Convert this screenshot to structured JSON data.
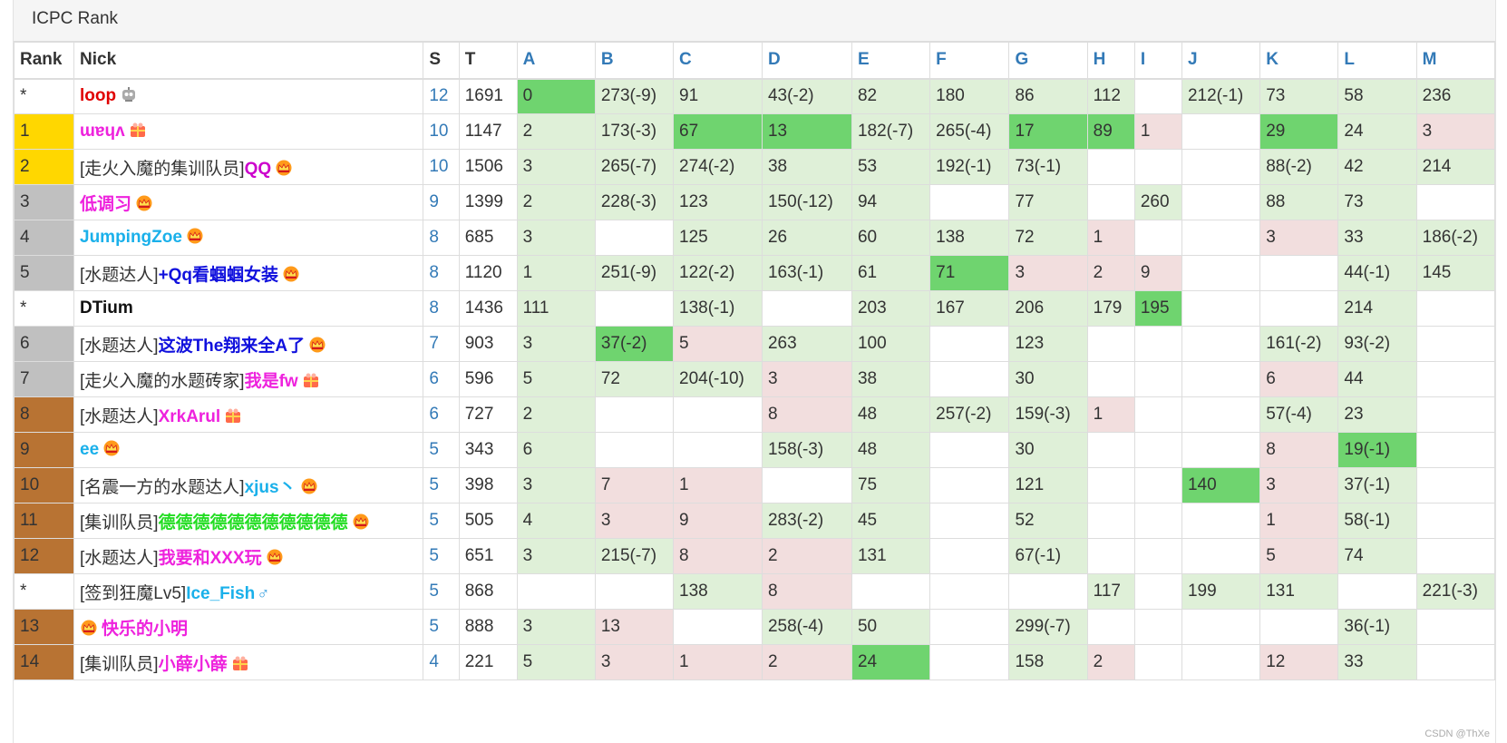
{
  "title": "ICPC Rank",
  "columns": [
    "Rank",
    "Nick",
    "S",
    "T"
  ],
  "problems": [
    "A",
    "B",
    "C",
    "D",
    "E",
    "F",
    "G",
    "H",
    "I",
    "J",
    "K",
    "L",
    "M"
  ],
  "colors": {
    "first_blood": "#6fd46f",
    "accepted": "#dff0d8",
    "wrong": "#f2dede",
    "gold": "#ffd700",
    "silver": "#c0c0c0",
    "bronze": "#b87333"
  },
  "rows": [
    {
      "rank": "*",
      "medal": "none",
      "prefix": "",
      "name": "loop",
      "color": "#e00000",
      "icon": "robot-icon",
      "s": "12",
      "t": "1691",
      "cells": [
        [
          "0",
          "fb"
        ],
        [
          "273(-9)",
          "ac"
        ],
        [
          "91",
          "ac"
        ],
        [
          "43(-2)",
          "ac"
        ],
        [
          "82",
          "ac"
        ],
        [
          "180",
          "ac"
        ],
        [
          "86",
          "ac"
        ],
        [
          "112",
          "ac"
        ],
        [
          "",
          ""
        ],
        [
          "212(-1)",
          "ac"
        ],
        [
          "73",
          "ac"
        ],
        [
          "58",
          "ac"
        ],
        [
          "236",
          "ac"
        ]
      ]
    },
    {
      "rank": "1",
      "medal": "gold",
      "prefix": "",
      "name": "ɯɐɥʌ",
      "color": "#ee22dd",
      "icon": "gift-icon",
      "s": "10",
      "t": "1147",
      "cells": [
        [
          "2",
          "ac"
        ],
        [
          "173(-3)",
          "ac"
        ],
        [
          "67",
          "fb"
        ],
        [
          "13",
          "fb"
        ],
        [
          "182(-7)",
          "ac"
        ],
        [
          "265(-4)",
          "ac"
        ],
        [
          "17",
          "fb"
        ],
        [
          "89",
          "fb"
        ],
        [
          "1",
          "wa"
        ],
        [
          "",
          ""
        ],
        [
          "29",
          "fb"
        ],
        [
          "24",
          "ac"
        ],
        [
          "3",
          "wa"
        ]
      ]
    },
    {
      "rank": "2",
      "medal": "gold",
      "prefix": "[走火入魔的集训队员]",
      "name": "QQ",
      "color": "#cc00cc",
      "icon": "crown-icon",
      "s": "10",
      "t": "1506",
      "cells": [
        [
          "3",
          "ac"
        ],
        [
          "265(-7)",
          "ac"
        ],
        [
          "274(-2)",
          "ac"
        ],
        [
          "38",
          "ac"
        ],
        [
          "53",
          "ac"
        ],
        [
          "192(-1)",
          "ac"
        ],
        [
          "73(-1)",
          "ac"
        ],
        [
          "",
          ""
        ],
        [
          "",
          ""
        ],
        [
          "",
          ""
        ],
        [
          "88(-2)",
          "ac"
        ],
        [
          "42",
          "ac"
        ],
        [
          "214",
          "ac"
        ]
      ]
    },
    {
      "rank": "3",
      "medal": "silver",
      "prefix": "",
      "name": "低调习",
      "color": "#ee22dd",
      "icon": "crown-icon",
      "s": "9",
      "t": "1399",
      "cells": [
        [
          "2",
          "ac"
        ],
        [
          "228(-3)",
          "ac"
        ],
        [
          "123",
          "ac"
        ],
        [
          "150(-12)",
          "ac"
        ],
        [
          "94",
          "ac"
        ],
        [
          "",
          ""
        ],
        [
          "77",
          "ac"
        ],
        [
          "",
          ""
        ],
        [
          "260",
          "ac"
        ],
        [
          "",
          ""
        ],
        [
          "88",
          "ac"
        ],
        [
          "73",
          "ac"
        ],
        [
          "",
          ""
        ]
      ]
    },
    {
      "rank": "4",
      "medal": "silver",
      "prefix": "",
      "name": "JumpingZoe",
      "color": "#1ab0ea",
      "icon": "crown-icon",
      "s": "8",
      "t": "685",
      "cells": [
        [
          "3",
          "ac"
        ],
        [
          "",
          ""
        ],
        [
          "125",
          "ac"
        ],
        [
          "26",
          "ac"
        ],
        [
          "60",
          "ac"
        ],
        [
          "138",
          "ac"
        ],
        [
          "72",
          "ac"
        ],
        [
          "1",
          "wa"
        ],
        [
          "",
          ""
        ],
        [
          "",
          ""
        ],
        [
          "3",
          "wa"
        ],
        [
          "33",
          "ac"
        ],
        [
          "186(-2)",
          "ac"
        ]
      ]
    },
    {
      "rank": "5",
      "medal": "silver",
      "prefix": "[水题达人]",
      "name": "+Qq看蝈蝈女装",
      "color": "#1010dd",
      "icon": "crown-icon",
      "s": "8",
      "t": "1120",
      "cells": [
        [
          "1",
          "ac"
        ],
        [
          "251(-9)",
          "ac"
        ],
        [
          "122(-2)",
          "ac"
        ],
        [
          "163(-1)",
          "ac"
        ],
        [
          "61",
          "ac"
        ],
        [
          "71",
          "fb"
        ],
        [
          "3",
          "wa"
        ],
        [
          "2",
          "wa"
        ],
        [
          "9",
          "wa"
        ],
        [
          "",
          ""
        ],
        [
          "",
          ""
        ],
        [
          "44(-1)",
          "ac"
        ],
        [
          "145",
          "ac"
        ]
      ]
    },
    {
      "rank": "*",
      "medal": "none",
      "prefix": "",
      "name": "DTium",
      "color": "#111111",
      "icon": "",
      "s": "8",
      "t": "1436",
      "cells": [
        [
          "111",
          "ac"
        ],
        [
          "",
          ""
        ],
        [
          "138(-1)",
          "ac"
        ],
        [
          "",
          ""
        ],
        [
          "203",
          "ac"
        ],
        [
          "167",
          "ac"
        ],
        [
          "206",
          "ac"
        ],
        [
          "179",
          "ac"
        ],
        [
          "195",
          "fb"
        ],
        [
          "",
          ""
        ],
        [
          "",
          ""
        ],
        [
          "214",
          "ac"
        ],
        [
          "",
          ""
        ]
      ]
    },
    {
      "rank": "6",
      "medal": "silver",
      "prefix": "[水题达人]",
      "name": "这波The翔来全A了",
      "color": "#1010dd",
      "icon": "crown-icon",
      "s": "7",
      "t": "903",
      "cells": [
        [
          "3",
          "ac"
        ],
        [
          "37(-2)",
          "fb"
        ],
        [
          "5",
          "wa"
        ],
        [
          "263",
          "ac"
        ],
        [
          "100",
          "ac"
        ],
        [
          "",
          ""
        ],
        [
          "123",
          "ac"
        ],
        [
          "",
          ""
        ],
        [
          "",
          ""
        ],
        [
          "",
          ""
        ],
        [
          "161(-2)",
          "ac"
        ],
        [
          "93(-2)",
          "ac"
        ],
        [
          "",
          ""
        ]
      ]
    },
    {
      "rank": "7",
      "medal": "silver",
      "prefix": "[走火入魔的水题砖家]",
      "name": "我是fw",
      "color": "#ee22dd",
      "icon": "gift-icon",
      "s": "6",
      "t": "596",
      "cells": [
        [
          "5",
          "ac"
        ],
        [
          "72",
          "ac"
        ],
        [
          "204(-10)",
          "ac"
        ],
        [
          "3",
          "wa"
        ],
        [
          "38",
          "ac"
        ],
        [
          "",
          ""
        ],
        [
          "30",
          "ac"
        ],
        [
          "",
          ""
        ],
        [
          "",
          ""
        ],
        [
          "",
          ""
        ],
        [
          "6",
          "wa"
        ],
        [
          "44",
          "ac"
        ],
        [
          "",
          ""
        ]
      ]
    },
    {
      "rank": "8",
      "medal": "bronze",
      "prefix": "[水题达人]",
      "name": "XrkArul",
      "color": "#ee22dd",
      "icon": "gift-icon",
      "s": "6",
      "t": "727",
      "cells": [
        [
          "2",
          "ac"
        ],
        [
          "",
          ""
        ],
        [
          "",
          ""
        ],
        [
          "8",
          "wa"
        ],
        [
          "48",
          "ac"
        ],
        [
          "257(-2)",
          "ac"
        ],
        [
          "159(-3)",
          "ac"
        ],
        [
          "1",
          "wa"
        ],
        [
          "",
          ""
        ],
        [
          "",
          ""
        ],
        [
          "57(-4)",
          "ac"
        ],
        [
          "23",
          "ac"
        ],
        [
          "",
          ""
        ]
      ]
    },
    {
      "rank": "9",
      "medal": "bronze",
      "prefix": "",
      "name": "ee",
      "color": "#1ab0ea",
      "icon": "crown-icon",
      "s": "5",
      "t": "343",
      "cells": [
        [
          "6",
          "ac"
        ],
        [
          "",
          ""
        ],
        [
          "",
          ""
        ],
        [
          "158(-3)",
          "ac"
        ],
        [
          "48",
          "ac"
        ],
        [
          "",
          ""
        ],
        [
          "30",
          "ac"
        ],
        [
          "",
          ""
        ],
        [
          "",
          ""
        ],
        [
          "",
          ""
        ],
        [
          "8",
          "wa"
        ],
        [
          "19(-1)",
          "fb"
        ],
        [
          "",
          ""
        ]
      ]
    },
    {
      "rank": "10",
      "medal": "bronze",
      "prefix": "[名震一方的水题达人]",
      "name": "xjus丶",
      "color": "#1ab0ea",
      "icon": "crown-icon",
      "s": "5",
      "t": "398",
      "cells": [
        [
          "3",
          "ac"
        ],
        [
          "7",
          "wa"
        ],
        [
          "1",
          "wa"
        ],
        [
          "",
          ""
        ],
        [
          "75",
          "ac"
        ],
        [
          "",
          ""
        ],
        [
          "121",
          "ac"
        ],
        [
          "",
          ""
        ],
        [
          "",
          ""
        ],
        [
          "140",
          "fb"
        ],
        [
          "3",
          "wa"
        ],
        [
          "37(-1)",
          "ac"
        ],
        [
          "",
          ""
        ]
      ]
    },
    {
      "rank": "11",
      "medal": "bronze",
      "prefix": "[集训队员]",
      "name": "德德德德德德德德德德德",
      "color": "#22dd22",
      "icon": "crown-icon",
      "s": "5",
      "t": "505",
      "cells": [
        [
          "4",
          "ac"
        ],
        [
          "3",
          "wa"
        ],
        [
          "9",
          "wa"
        ],
        [
          "283(-2)",
          "ac"
        ],
        [
          "45",
          "ac"
        ],
        [
          "",
          ""
        ],
        [
          "52",
          "ac"
        ],
        [
          "",
          ""
        ],
        [
          "",
          ""
        ],
        [
          "",
          ""
        ],
        [
          "1",
          "wa"
        ],
        [
          "58(-1)",
          "ac"
        ],
        [
          "",
          ""
        ]
      ]
    },
    {
      "rank": "12",
      "medal": "bronze",
      "prefix": "[水题达人]",
      "name": "我要和XXX玩",
      "color": "#ee22dd",
      "icon": "crown-icon",
      "s": "5",
      "t": "651",
      "cells": [
        [
          "3",
          "ac"
        ],
        [
          "215(-7)",
          "ac"
        ],
        [
          "8",
          "wa"
        ],
        [
          "2",
          "wa"
        ],
        [
          "131",
          "ac"
        ],
        [
          "",
          ""
        ],
        [
          "67(-1)",
          "ac"
        ],
        [
          "",
          ""
        ],
        [
          "",
          ""
        ],
        [
          "",
          ""
        ],
        [
          "5",
          "wa"
        ],
        [
          "74",
          "ac"
        ],
        [
          "",
          ""
        ]
      ]
    },
    {
      "rank": "*",
      "medal": "none",
      "prefix": "[签到狂魔Lv5]",
      "name": "Ice_Fish",
      "color": "#1ab0ea",
      "icon": "mars-icon",
      "s": "5",
      "t": "868",
      "cells": [
        [
          "",
          ""
        ],
        [
          "",
          ""
        ],
        [
          "138",
          "ac"
        ],
        [
          "8",
          "wa"
        ],
        [
          "",
          ""
        ],
        [
          "",
          ""
        ],
        [
          "",
          ""
        ],
        [
          "117",
          "ac"
        ],
        [
          "",
          ""
        ],
        [
          "199",
          "ac"
        ],
        [
          "131",
          "ac"
        ],
        [
          "",
          ""
        ],
        [
          "221(-3)",
          "ac"
        ]
      ]
    },
    {
      "rank": "13",
      "medal": "bronze",
      "prefix": "",
      "name": "快乐的小明",
      "color": "#ee22dd",
      "icon": "crown-icon-left",
      "s": "5",
      "t": "888",
      "cells": [
        [
          "3",
          "ac"
        ],
        [
          "13",
          "wa"
        ],
        [
          "",
          ""
        ],
        [
          "258(-4)",
          "ac"
        ],
        [
          "50",
          "ac"
        ],
        [
          "",
          ""
        ],
        [
          "299(-7)",
          "ac"
        ],
        [
          "",
          ""
        ],
        [
          "",
          ""
        ],
        [
          "",
          ""
        ],
        [
          "",
          ""
        ],
        [
          "36(-1)",
          "ac"
        ],
        [
          "",
          ""
        ]
      ]
    },
    {
      "rank": "14",
      "medal": "bronze",
      "prefix": "[集训队员]",
      "name": "小薛小薛",
      "color": "#ee22dd",
      "icon": "gift-icon",
      "s": "4",
      "t": "221",
      "cells": [
        [
          "5",
          "ac"
        ],
        [
          "3",
          "wa"
        ],
        [
          "1",
          "wa"
        ],
        [
          "2",
          "wa"
        ],
        [
          "24",
          "fb"
        ],
        [
          "",
          ""
        ],
        [
          "158",
          "ac"
        ],
        [
          "2",
          "wa"
        ],
        [
          "",
          ""
        ],
        [
          "",
          ""
        ],
        [
          "12",
          "wa"
        ],
        [
          "33",
          "ac"
        ],
        [
          "",
          ""
        ]
      ]
    }
  ],
  "watermark": "CSDN @ThXe"
}
